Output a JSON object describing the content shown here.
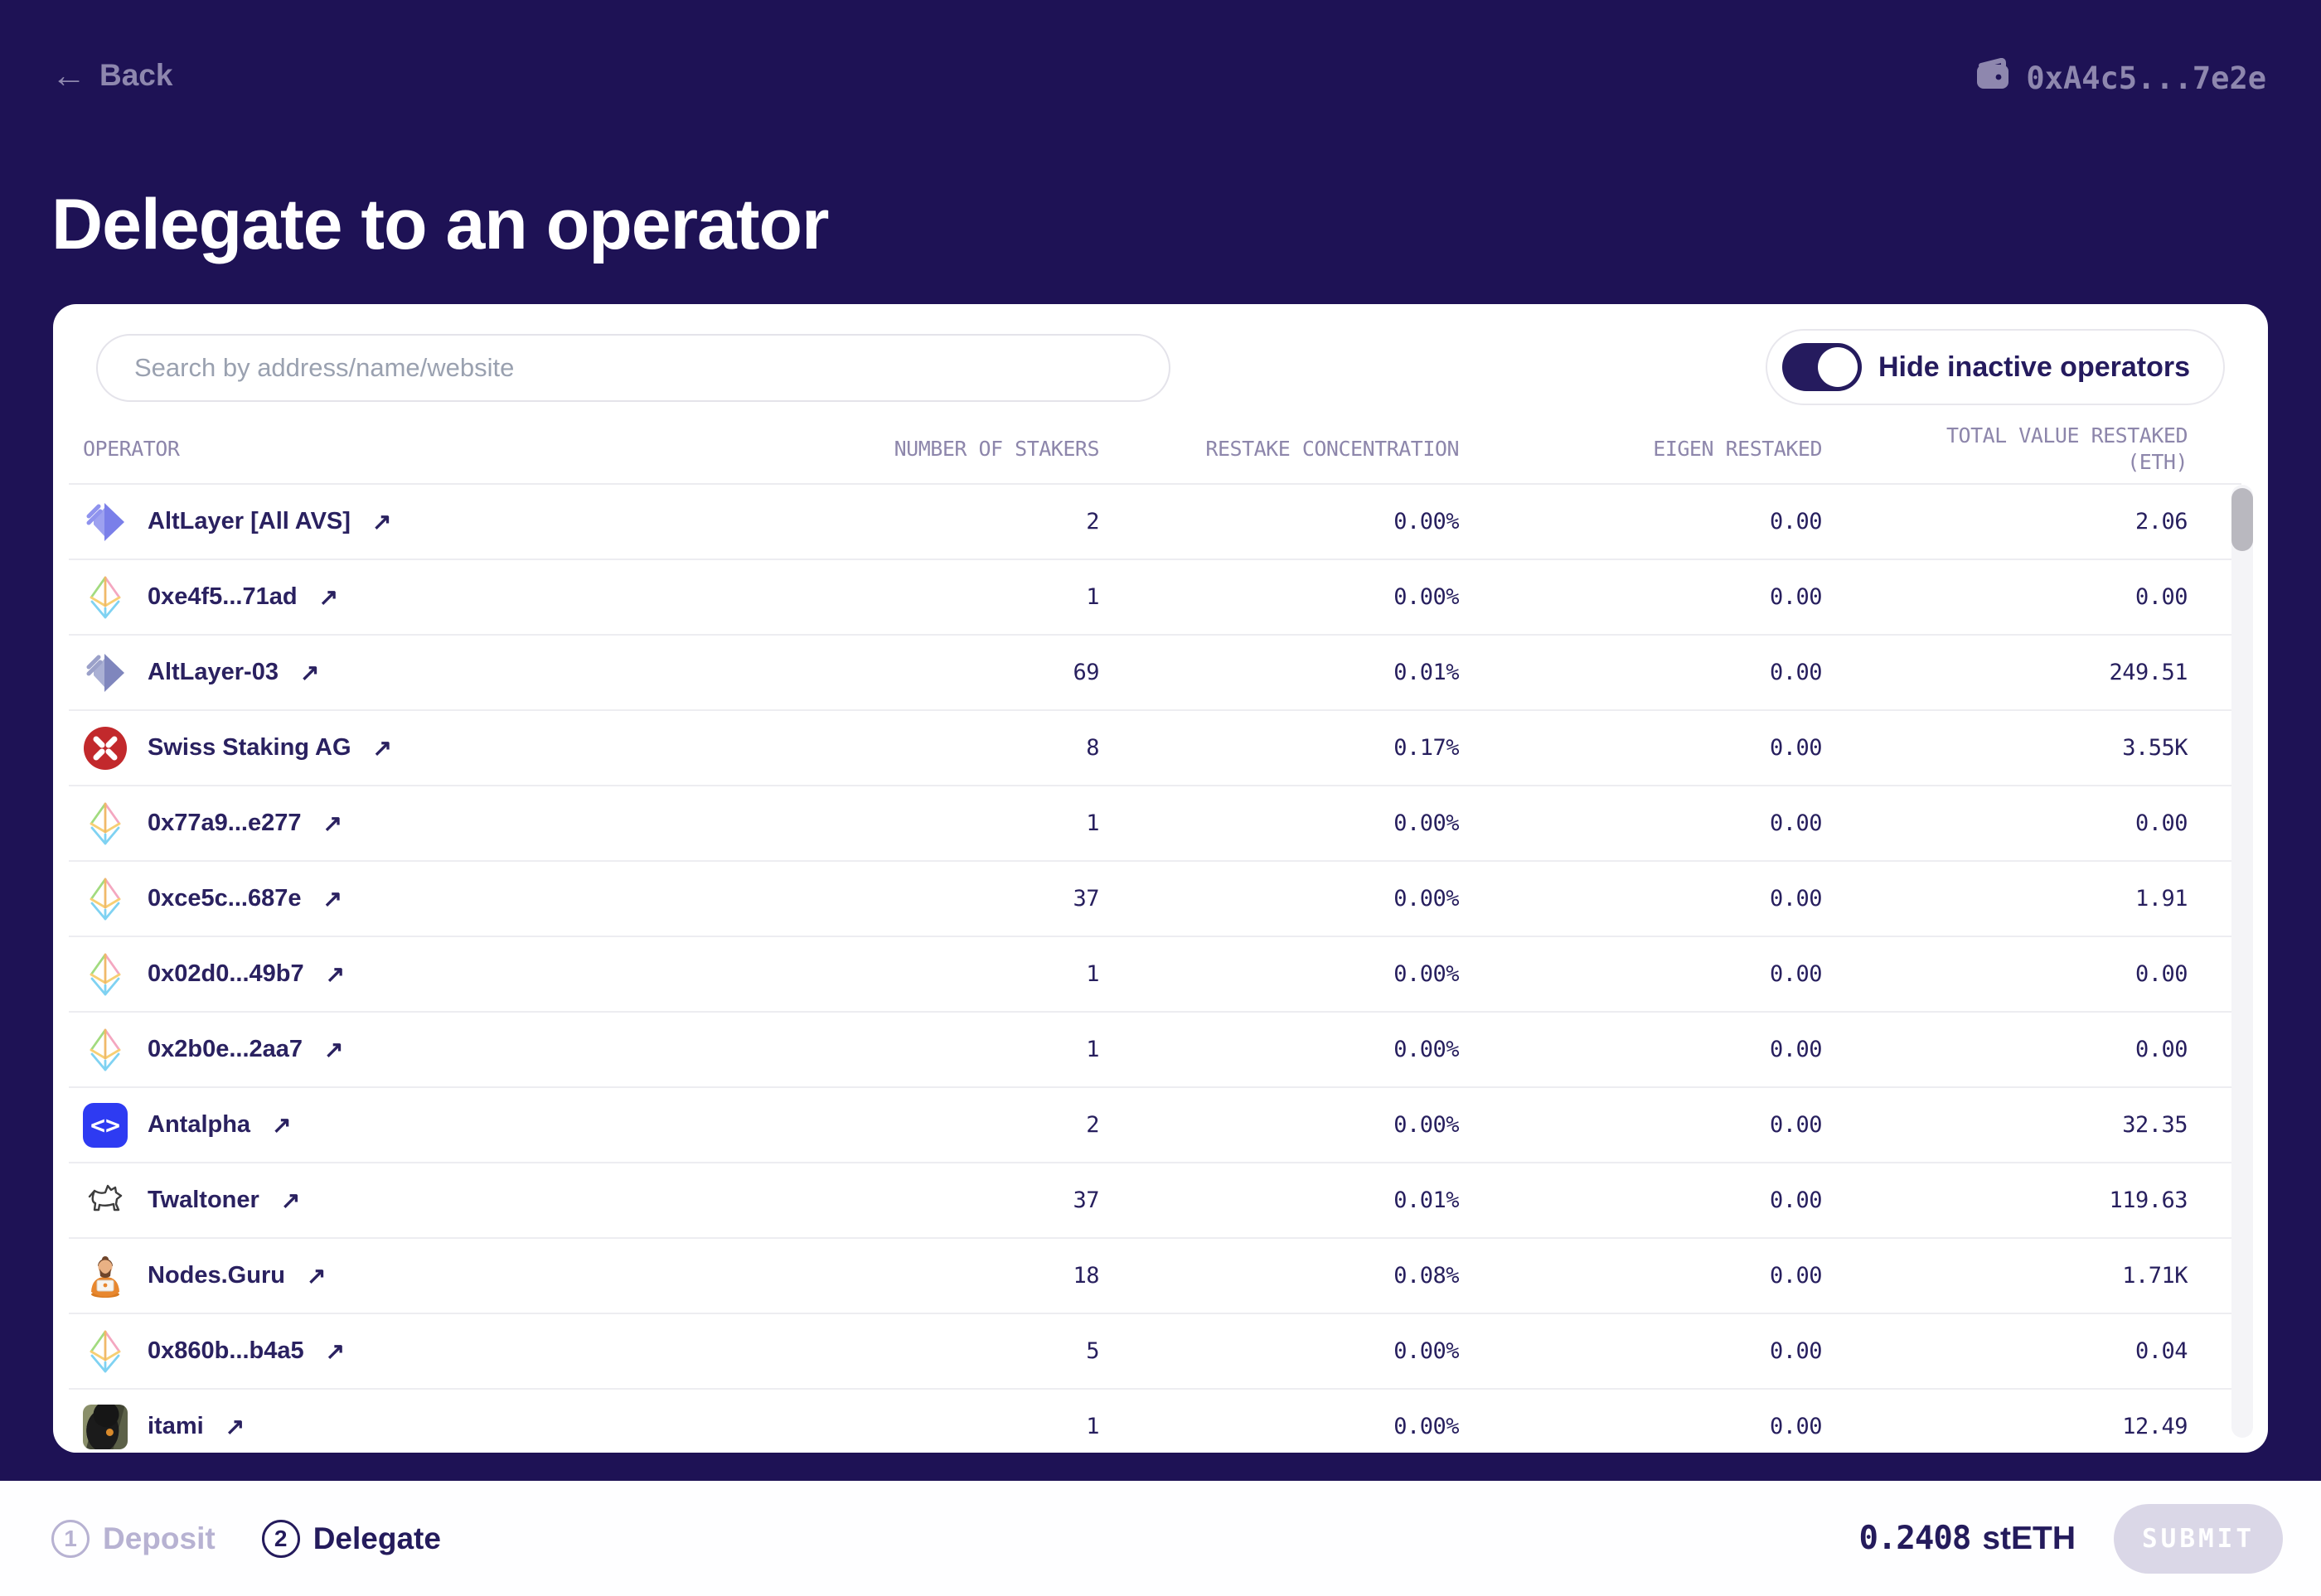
{
  "topbar": {
    "back_label": "Back",
    "wallet_address": "0xA4c5...7e2e"
  },
  "title": "Delegate to an operator",
  "icons": {
    "back_arrow": "←",
    "external_link": "↗",
    "antalpha_glyph": "<>"
  },
  "controls": {
    "search_placeholder": "Search by address/name/website",
    "toggle_label": "Hide inactive operators",
    "toggle_enabled": true
  },
  "table": {
    "headers": {
      "operator": "OPERATOR",
      "stakers": "NUMBER OF STAKERS",
      "concentration": "RESTAKE CONCENTRATION",
      "eigen": "EIGEN RESTAKED",
      "total_line1": "TOTAL VALUE RESTAKED",
      "total_line2": "(ETH)"
    },
    "rows": [
      {
        "name": "AltLayer [All AVS]",
        "icon": "altlayer",
        "stakers": "2",
        "concentration": "0.00%",
        "eigen": "0.00",
        "total": "2.06"
      },
      {
        "name": "0xe4f5...71ad",
        "icon": "eth",
        "stakers": "1",
        "concentration": "0.00%",
        "eigen": "0.00",
        "total": "0.00"
      },
      {
        "name": "AltLayer-03",
        "icon": "altlayer2",
        "stakers": "69",
        "concentration": "0.01%",
        "eigen": "0.00",
        "total": "249.51"
      },
      {
        "name": "Swiss Staking AG",
        "icon": "swiss",
        "stakers": "8",
        "concentration": "0.17%",
        "eigen": "0.00",
        "total": "3.55K"
      },
      {
        "name": "0x77a9...e277",
        "icon": "eth",
        "stakers": "1",
        "concentration": "0.00%",
        "eigen": "0.00",
        "total": "0.00"
      },
      {
        "name": "0xce5c...687e",
        "icon": "eth",
        "stakers": "37",
        "concentration": "0.00%",
        "eigen": "0.00",
        "total": "1.91"
      },
      {
        "name": "0x02d0...49b7",
        "icon": "eth",
        "stakers": "1",
        "concentration": "0.00%",
        "eigen": "0.00",
        "total": "0.00"
      },
      {
        "name": "0x2b0e...2aa7",
        "icon": "eth",
        "stakers": "1",
        "concentration": "0.00%",
        "eigen": "0.00",
        "total": "0.00"
      },
      {
        "name": "Antalpha",
        "icon": "antalpha",
        "stakers": "2",
        "concentration": "0.00%",
        "eigen": "0.00",
        "total": "32.35"
      },
      {
        "name": "Twaltoner",
        "icon": "dog",
        "stakers": "37",
        "concentration": "0.01%",
        "eigen": "0.00",
        "total": "119.63"
      },
      {
        "name": "Nodes.Guru",
        "icon": "guru",
        "stakers": "18",
        "concentration": "0.08%",
        "eigen": "0.00",
        "total": "1.71K"
      },
      {
        "name": "0x860b...b4a5",
        "icon": "eth",
        "stakers": "5",
        "concentration": "0.00%",
        "eigen": "0.00",
        "total": "0.04"
      },
      {
        "name": "itami",
        "icon": "photo",
        "stakers": "1",
        "concentration": "0.00%",
        "eigen": "0.00",
        "total": "12.49"
      }
    ]
  },
  "footer": {
    "steps": [
      {
        "number": "1",
        "label": "Deposit",
        "active": false
      },
      {
        "number": "2",
        "label": "Delegate",
        "active": true
      }
    ],
    "amount_value": "0.2408",
    "amount_unit": "stETH",
    "submit_label": "SUBMIT"
  },
  "colors": {
    "background": "#1e1255",
    "card": "#ffffff",
    "primary_text": "#2a2160",
    "muted_text": "#8e87ae",
    "header_text": "#8d86ab",
    "divider": "#ededf1",
    "toggle_on": "#251b5e",
    "submit_disabled_bg": "#dad7e7",
    "swiss_red": "#c2292c",
    "antalpha_blue": "#2e3bf2",
    "altlayer_purple": "#7a7fe9"
  }
}
